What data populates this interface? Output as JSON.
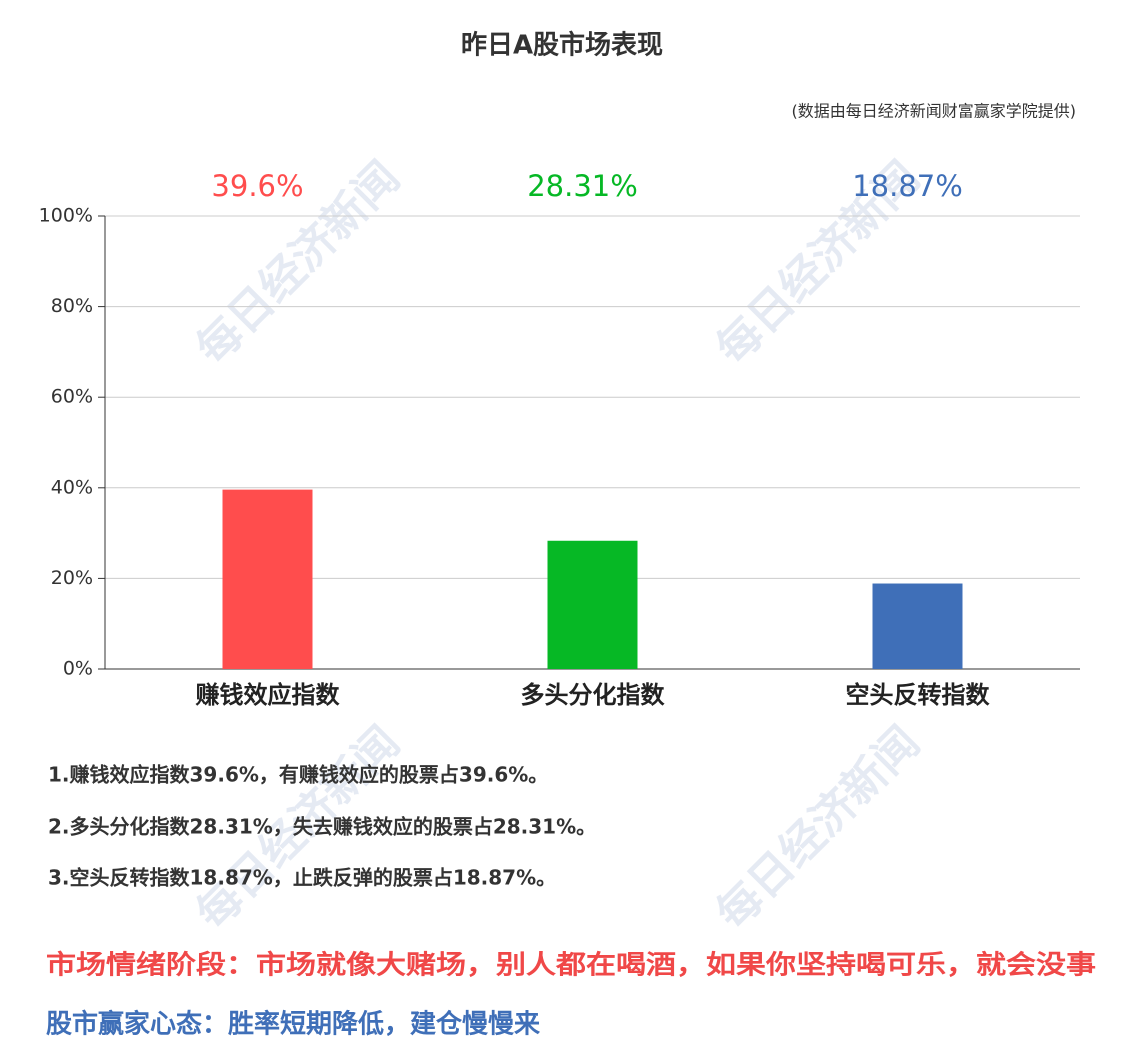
{
  "chart_data": {
    "type": "bar",
    "title": "昨日A股市场表现",
    "subtitle": "(数据由每日经济新闻财富赢家学院提供)",
    "categories": [
      "赚钱效应指数",
      "多头分化指数",
      "空头反转指数"
    ],
    "values": [
      39.6,
      28.31,
      18.87
    ],
    "value_labels": [
      "39.6%",
      "28.31%",
      "18.87%"
    ],
    "colors": [
      "#ff4d4d",
      "#06b825",
      "#3f6fb8"
    ],
    "ylim": [
      0,
      100
    ],
    "yticks": [
      {
        "value": 0,
        "label": "0%"
      },
      {
        "value": 20,
        "label": "20%"
      },
      {
        "value": 40,
        "label": "40%"
      },
      {
        "value": 60,
        "label": "60%"
      },
      {
        "value": 80,
        "label": "80%"
      },
      {
        "value": 100,
        "label": "100%"
      }
    ],
    "grid": true
  },
  "watermark": "每日经济新闻",
  "notes": [
    "1.赚钱效应指数39.6%，有赚钱效应的股票占39.6%。",
    "2.多头分化指数28.31%，失去赚钱效应的股票占28.31%。",
    "3.空头反转指数18.87%，止跌反弹的股票占18.87%。"
  ],
  "highlights": [
    "市场情绪阶段：市场就像大赌场，别人都在喝酒，如果你坚持喝可乐，就会没事",
    "股市赢家心态：胜率短期降低，建仓慢慢来"
  ]
}
